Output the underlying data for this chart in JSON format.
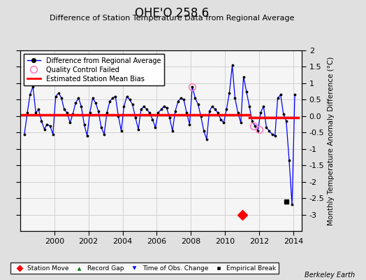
{
  "title": "OHE'O 258.6",
  "subtitle": "Difference of Station Temperature Data from Regional Average",
  "ylabel": "Monthly Temperature Anomaly Difference (°C)",
  "xlim": [
    1998.0,
    2014.5
  ],
  "ylim": [
    -3.5,
    2.0
  ],
  "yticks": [
    -3.0,
    -2.5,
    -2.0,
    -1.5,
    -1.0,
    -0.5,
    0.0,
    0.5,
    1.0,
    1.5,
    2.0
  ],
  "xticks": [
    2000,
    2002,
    2004,
    2006,
    2008,
    2010,
    2012,
    2014
  ],
  "bg_color": "#e0e0e0",
  "plot_bg_color": "#f5f5f5",
  "grid_color": "#d0d0d0",
  "bias_x1_start": 1998.0,
  "bias_x1_end": 2011.42,
  "bias_y1": 0.03,
  "bias_x2_start": 2011.42,
  "bias_x2_end": 2014.3,
  "bias_y2": -0.05,
  "station_move_x": 2011.0,
  "station_move_y": -3.0,
  "empirical_break_x": 2013.6,
  "empirical_break_y": -2.6,
  "qc_failed_points": [
    [
      2008.08,
      0.9
    ],
    [
      2011.67,
      -0.3
    ],
    [
      2012.0,
      -0.4
    ]
  ],
  "series_x": [
    1998.25,
    1998.42,
    1998.58,
    1998.75,
    1998.92,
    1999.08,
    1999.25,
    1999.42,
    1999.58,
    1999.75,
    1999.92,
    2000.08,
    2000.25,
    2000.42,
    2000.58,
    2000.75,
    2000.92,
    2001.08,
    2001.25,
    2001.42,
    2001.58,
    2001.75,
    2001.92,
    2002.08,
    2002.25,
    2002.42,
    2002.58,
    2002.75,
    2002.92,
    2003.08,
    2003.25,
    2003.42,
    2003.58,
    2003.75,
    2003.92,
    2004.08,
    2004.25,
    2004.42,
    2004.58,
    2004.75,
    2004.92,
    2005.08,
    2005.25,
    2005.42,
    2005.58,
    2005.75,
    2005.92,
    2006.08,
    2006.25,
    2006.42,
    2006.58,
    2006.75,
    2006.92,
    2007.08,
    2007.25,
    2007.42,
    2007.58,
    2007.75,
    2007.92,
    2008.08,
    2008.25,
    2008.42,
    2008.58,
    2008.75,
    2008.92,
    2009.08,
    2009.25,
    2009.42,
    2009.58,
    2009.75,
    2009.92,
    2010.08,
    2010.25,
    2010.42,
    2010.58,
    2010.75,
    2010.92,
    2011.08,
    2011.25,
    2011.42,
    2011.58,
    2011.75,
    2011.92,
    2012.08,
    2012.25,
    2012.42,
    2012.58,
    2012.75,
    2012.92,
    2013.08,
    2013.25,
    2013.42,
    2013.58,
    2013.75,
    2013.92,
    2014.08
  ],
  "series_y": [
    -0.55,
    0.1,
    0.65,
    0.9,
    0.1,
    0.2,
    -0.15,
    -0.4,
    -0.25,
    -0.3,
    -0.55,
    0.6,
    0.7,
    0.55,
    0.2,
    0.1,
    -0.2,
    0.05,
    0.4,
    0.55,
    0.3,
    -0.25,
    -0.6,
    0.1,
    0.55,
    0.4,
    0.15,
    -0.35,
    -0.55,
    0.1,
    0.45,
    0.55,
    0.6,
    0.0,
    -0.45,
    0.3,
    0.6,
    0.5,
    0.35,
    -0.05,
    -0.4,
    0.2,
    0.3,
    0.2,
    0.1,
    -0.1,
    -0.35,
    0.1,
    0.2,
    0.3,
    0.25,
    -0.05,
    -0.45,
    0.15,
    0.45,
    0.55,
    0.5,
    0.1,
    -0.25,
    0.9,
    0.55,
    0.35,
    0.0,
    -0.45,
    -0.7,
    0.15,
    0.3,
    0.2,
    0.1,
    -0.1,
    -0.2,
    0.2,
    0.7,
    1.55,
    0.55,
    0.1,
    -0.2,
    1.2,
    0.75,
    0.3,
    -0.15,
    -0.3,
    -0.45,
    0.1,
    0.3,
    -0.35,
    -0.45,
    -0.55,
    -0.6,
    0.55,
    0.65,
    0.05,
    -0.15,
    -1.35,
    -2.7,
    0.65
  ]
}
